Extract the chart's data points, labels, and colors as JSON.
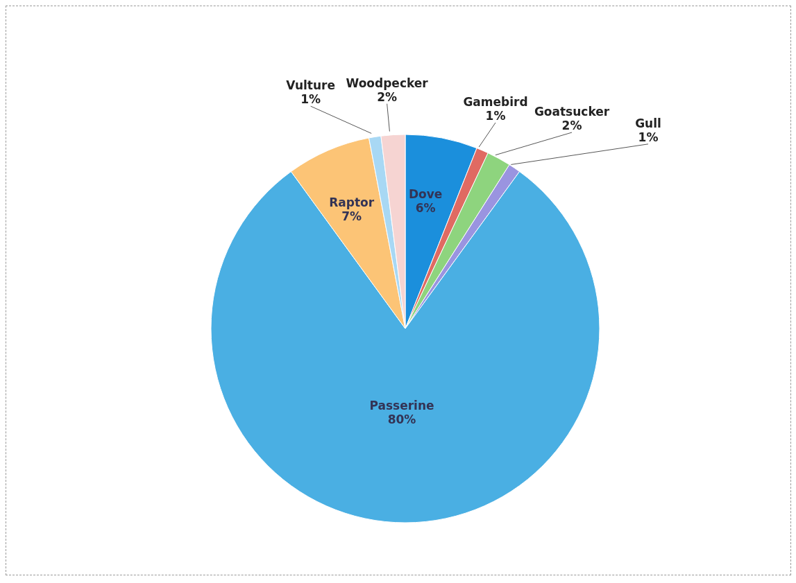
{
  "chart_data": {
    "type": "pie",
    "categories": [
      "Dove",
      "Gamebird",
      "Goatsucker",
      "Gull",
      "Passerine",
      "Raptor",
      "Vulture",
      "Woodpecker"
    ],
    "values": [
      6,
      1,
      2,
      1,
      80,
      7,
      1,
      2
    ],
    "colors": [
      "#1b8fdc",
      "#e06a62",
      "#8ed47e",
      "#9a94e0",
      "#4aafe3",
      "#fcc476",
      "#a8d8f4",
      "#f6d4d2"
    ],
    "value_labels": [
      "6%",
      "1%",
      "2%",
      "1%",
      "80%",
      "7%",
      "1%",
      "2%"
    ],
    "legend": false
  }
}
